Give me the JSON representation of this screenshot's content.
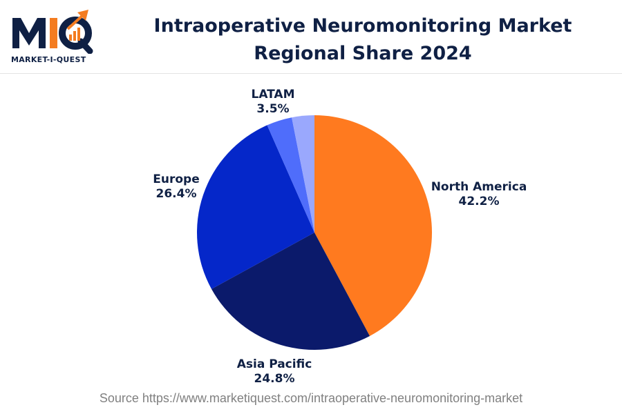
{
  "brand": {
    "logo_letters": "MIQ",
    "name": "MARKET-I-QUEST"
  },
  "colors": {
    "title": "#0f2044",
    "north_america": "#ff7a1f",
    "asia_pacific": "#0b1a6b",
    "europe": "#0527c9",
    "latam": "#4f6dfb",
    "other": "#9aa8fd",
    "source_text": "#808080"
  },
  "chart_data": {
    "type": "pie",
    "title": "Intraoperative Neuromonitoring Market Regional Share 2024",
    "slices": [
      {
        "label": "North America",
        "value": 42.2,
        "value_label": "42.2%",
        "color": "#ff7a1f"
      },
      {
        "label": "Asia Pacific",
        "value": 24.8,
        "value_label": "24.8%",
        "color": "#0b1a6b"
      },
      {
        "label": "Europe",
        "value": 26.4,
        "value_label": "26.4%",
        "color": "#0527c9"
      },
      {
        "label": "LATAM",
        "value": 3.5,
        "value_label": "3.5%",
        "color": "#4f6dfb"
      },
      {
        "label": "",
        "value": 3.1,
        "value_label": "",
        "color": "#9aa8fd"
      }
    ],
    "legend": "none",
    "start_angle": "top, clockwise"
  },
  "source": "Source https://www.marketiquest.com/intraoperative-neuromonitoring-market"
}
